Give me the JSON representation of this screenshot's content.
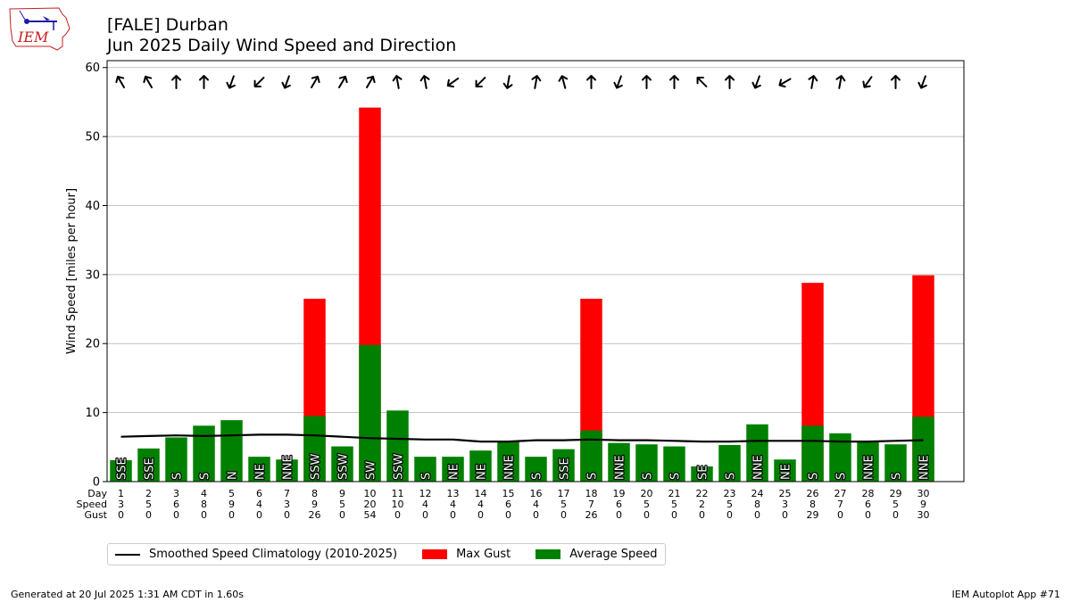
{
  "header": {
    "title_line1": "[FALE] Durban",
    "title_line2": "Jun 2025 Daily Wind Speed and Direction",
    "logo_text": "IEM"
  },
  "footer": {
    "generated": "Generated at 20 Jul 2025 1:31 AM CDT in 1.60s",
    "app": "IEM Autoplot App #71"
  },
  "legend": {
    "climatology": "Smoothed Speed Climatology (2010-2025)",
    "gust": "Max Gust",
    "average": "Average Speed"
  },
  "colors": {
    "gust": "#ff0000",
    "average": "#008000",
    "climatology": "#000000",
    "grid": "#b0b0b0"
  },
  "chart_data": {
    "type": "bar",
    "ylabel": "Wind Speed [miles per hour]",
    "ylim": [
      0,
      61
    ],
    "yticks": [
      0,
      10,
      20,
      30,
      40,
      50,
      60
    ],
    "grid": "horizontal",
    "legend_position": "below",
    "row_labels": [
      "Day",
      "Speed",
      "Gust"
    ],
    "days": [
      1,
      2,
      3,
      4,
      5,
      6,
      7,
      8,
      9,
      10,
      11,
      12,
      13,
      14,
      15,
      16,
      17,
      18,
      19,
      20,
      21,
      22,
      23,
      24,
      25,
      26,
      27,
      28,
      29,
      30
    ],
    "speed_labels": [
      3,
      5,
      6,
      8,
      9,
      4,
      3,
      9,
      5,
      20,
      10,
      4,
      4,
      4,
      6,
      4,
      5,
      7,
      6,
      5,
      5,
      2,
      5,
      8,
      3,
      8,
      7,
      6,
      5,
      9
    ],
    "gust_labels": [
      0,
      0,
      0,
      0,
      0,
      0,
      0,
      26,
      0,
      54,
      0,
      0,
      0,
      0,
      0,
      0,
      0,
      26,
      0,
      0,
      0,
      0,
      0,
      0,
      0,
      29,
      0,
      0,
      0,
      30
    ],
    "average_speed": [
      3.1,
      4.8,
      6.4,
      8.1,
      8.9,
      3.6,
      3.2,
      9.5,
      5.1,
      19.8,
      10.3,
      3.6,
      3.6,
      4.5,
      5.9,
      3.6,
      4.7,
      7.4,
      5.6,
      5.4,
      5.1,
      2.2,
      5.3,
      8.3,
      3.2,
      8.1,
      7.0,
      5.9,
      5.4,
      9.4
    ],
    "max_gust": [
      0,
      0,
      0,
      0,
      0,
      0,
      0,
      26.5,
      0,
      54.2,
      0,
      0,
      0,
      0,
      0,
      0,
      0,
      26.5,
      0,
      0,
      0,
      0,
      0,
      0,
      0,
      28.8,
      0,
      0,
      0,
      29.9
    ],
    "direction_text": [
      "SSE",
      "SSE",
      "S",
      "S",
      "N",
      "NE",
      "NNE",
      "SSW",
      "SSW",
      "SW",
      "SSW",
      "S",
      "NE",
      "NE",
      "NNE",
      "S",
      "SSE",
      "S",
      "NNE",
      "S",
      "S",
      "SE",
      "S",
      "NNE",
      "NE",
      "S",
      "S",
      "NNE",
      "S",
      "NNE"
    ],
    "arrow_rotation_deg": [
      330,
      330,
      0,
      0,
      200,
      225,
      200,
      30,
      30,
      30,
      350,
      350,
      235,
      225,
      190,
      10,
      345,
      0,
      200,
      0,
      0,
      315,
      0,
      200,
      240,
      10,
      10,
      215,
      0,
      200
    ],
    "climatology": [
      6.5,
      6.6,
      6.7,
      6.6,
      6.7,
      6.8,
      6.8,
      6.7,
      6.5,
      6.3,
      6.2,
      6.1,
      6.1,
      5.8,
      5.8,
      6.0,
      6.0,
      6.1,
      6.0,
      6.0,
      5.9,
      5.8,
      5.8,
      5.9,
      5.9,
      5.9,
      5.8,
      5.8,
      5.9,
      6.0
    ]
  }
}
